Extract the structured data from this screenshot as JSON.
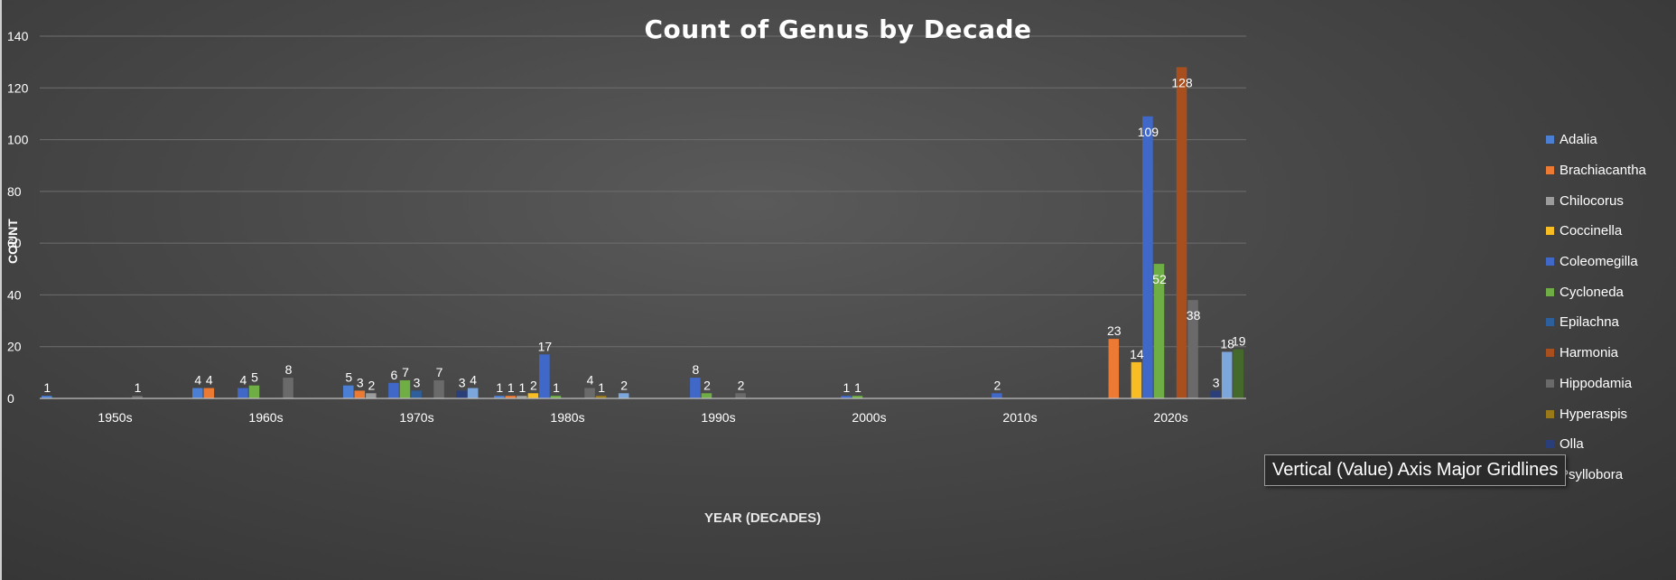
{
  "tooltip": "Vertical (Value) Axis Major Gridlines",
  "colors": {
    "Adalia": "#4a7fd4",
    "Brachiacantha": "#ec7a33",
    "Chilocorus": "#9c9c9c",
    "Coccinella": "#f7bd22",
    "Coleomegilla": "#3f68c9",
    "Cycloneda": "#6fae45",
    "Epilachna": "#2c5f9c",
    "Harmonia": "#a94f1d",
    "Hippodamia": "#6a6a6a",
    "Hyperaspis": "#9a7a18",
    "Olla": "#2a3f7a",
    "Psyllobora": "#7ba7dd",
    "Unlisted": "#44692b"
  },
  "chart_data": {
    "type": "bar",
    "title": "Count of Genus by Decade",
    "xlabel": "YEAR (DECADES)",
    "ylabel": "COUNT",
    "ylim": [
      0,
      140
    ],
    "yticks": [
      0,
      20,
      40,
      60,
      80,
      100,
      120,
      140
    ],
    "grid": true,
    "legend_position": "right",
    "categories": [
      "1950s",
      "1960s",
      "1970s",
      "1980s",
      "1990s",
      "2000s",
      "2010s",
      "2020s"
    ],
    "legend": [
      "Adalia",
      "Brachiacantha",
      "Chilocorus",
      "Coccinella",
      "Coleomegilla",
      "Cycloneda",
      "Epilachna",
      "Harmonia",
      "Hippodamia",
      "Hyperaspis",
      "Olla",
      "Psyllobora"
    ],
    "series": [
      {
        "name": "Adalia",
        "values": [
          1,
          4,
          5,
          1,
          null,
          null,
          null,
          null
        ]
      },
      {
        "name": "Brachiacantha",
        "values": [
          null,
          4,
          3,
          1,
          null,
          null,
          null,
          23
        ]
      },
      {
        "name": "Chilocorus",
        "values": [
          null,
          null,
          2,
          1,
          null,
          null,
          null,
          null
        ]
      },
      {
        "name": "Coccinella",
        "values": [
          null,
          null,
          null,
          2,
          null,
          null,
          null,
          14
        ]
      },
      {
        "name": "Coleomegilla",
        "values": [
          null,
          4,
          6,
          17,
          8,
          1,
          2,
          109
        ]
      },
      {
        "name": "Cycloneda",
        "values": [
          null,
          5,
          7,
          1,
          2,
          1,
          null,
          52
        ]
      },
      {
        "name": "Epilachna",
        "values": [
          null,
          null,
          3,
          null,
          null,
          null,
          null,
          null
        ]
      },
      {
        "name": "Harmonia",
        "values": [
          null,
          null,
          null,
          null,
          null,
          null,
          null,
          128
        ]
      },
      {
        "name": "Hippodamia",
        "values": [
          1,
          8,
          7,
          4,
          2,
          null,
          null,
          38
        ]
      },
      {
        "name": "Hyperaspis",
        "values": [
          null,
          null,
          null,
          1,
          null,
          null,
          null,
          null
        ]
      },
      {
        "name": "Olla",
        "values": [
          null,
          null,
          3,
          null,
          null,
          null,
          null,
          3
        ]
      },
      {
        "name": "Psyllobora",
        "values": [
          null,
          null,
          4,
          2,
          null,
          null,
          null,
          18
        ]
      },
      {
        "values": [
          null,
          null,
          null,
          null,
          null,
          null,
          null,
          19
        ]
      }
    ]
  }
}
